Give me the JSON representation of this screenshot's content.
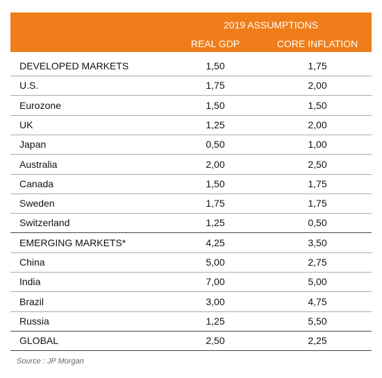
{
  "header": {
    "title": "2019 ASSUMPTIONS",
    "columns": [
      "REAL GDP",
      "CORE INFLATION"
    ]
  },
  "table": {
    "rows": [
      [
        "DEVELOPED MARKETS",
        "1,50",
        "1,75"
      ],
      [
        "U.S.",
        "1,75",
        "2,00"
      ],
      [
        "Eurozone",
        "1,50",
        "1,50"
      ],
      [
        "UK",
        "1,25",
        "2,00"
      ],
      [
        "Japan",
        "0,50",
        "1,00"
      ],
      [
        "Australia",
        "2,00",
        "2,50"
      ],
      [
        "Canada",
        "1,50",
        "1,75"
      ],
      [
        "Sweden",
        "1,75",
        "1,75"
      ],
      [
        "Switzerland",
        "1,25",
        "0,50"
      ],
      [
        "EMERGING MARKETS*",
        "4,25",
        "3,50"
      ],
      [
        "China",
        "5,00",
        "2,75"
      ],
      [
        "India",
        "7,00",
        "5,00"
      ],
      [
        "Brazil",
        "3,00",
        "4,75"
      ],
      [
        "Russia",
        "1,25",
        "5,50"
      ],
      [
        "GLOBAL",
        "2,50",
        "2,25"
      ]
    ]
  },
  "source": "Source : JP Morgan"
}
